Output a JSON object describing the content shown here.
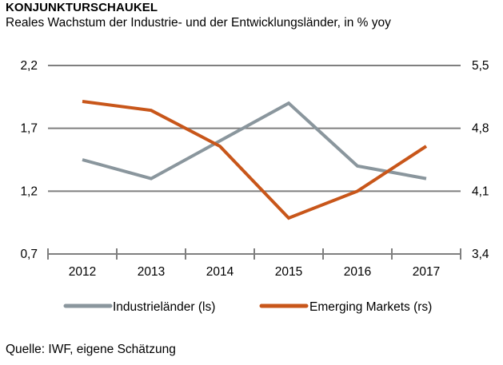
{
  "chart_data": {
    "type": "line",
    "title": "KONJUNKTURSCHAUKEL",
    "subtitle": "Reales Wachstum der Industrie- und der Entwicklungsländer, in % yoy",
    "source": "Quelle: IWF, eigene Schätzung",
    "categories": [
      "2012",
      "2013",
      "2014",
      "2015",
      "2016",
      "2017"
    ],
    "y_left": {
      "ticks": [
        0.7,
        1.2,
        1.7,
        2.2
      ],
      "tick_labels": [
        "0,7",
        "1,2",
        "1,7",
        "2,2"
      ],
      "ylim": [
        0.7,
        2.2
      ]
    },
    "y_right": {
      "ticks": [
        3.4,
        4.1,
        4.8,
        5.5
      ],
      "tick_labels": [
        "3,4",
        "4,1",
        "4,8",
        "5,5"
      ],
      "ylim": [
        3.4,
        5.5
      ]
    },
    "grid": true,
    "legend_position": "bottom",
    "series": [
      {
        "name": "Industrieländer (ls)",
        "axis": "left",
        "color": "#8A969D",
        "values": [
          1.45,
          1.3,
          1.6,
          1.9,
          1.4,
          1.3
        ]
      },
      {
        "name": "Emerging Markets (rs)",
        "axis": "right",
        "color": "#C8561A",
        "values": [
          5.1,
          5.0,
          4.6,
          3.8,
          4.1,
          4.6
        ]
      }
    ]
  }
}
